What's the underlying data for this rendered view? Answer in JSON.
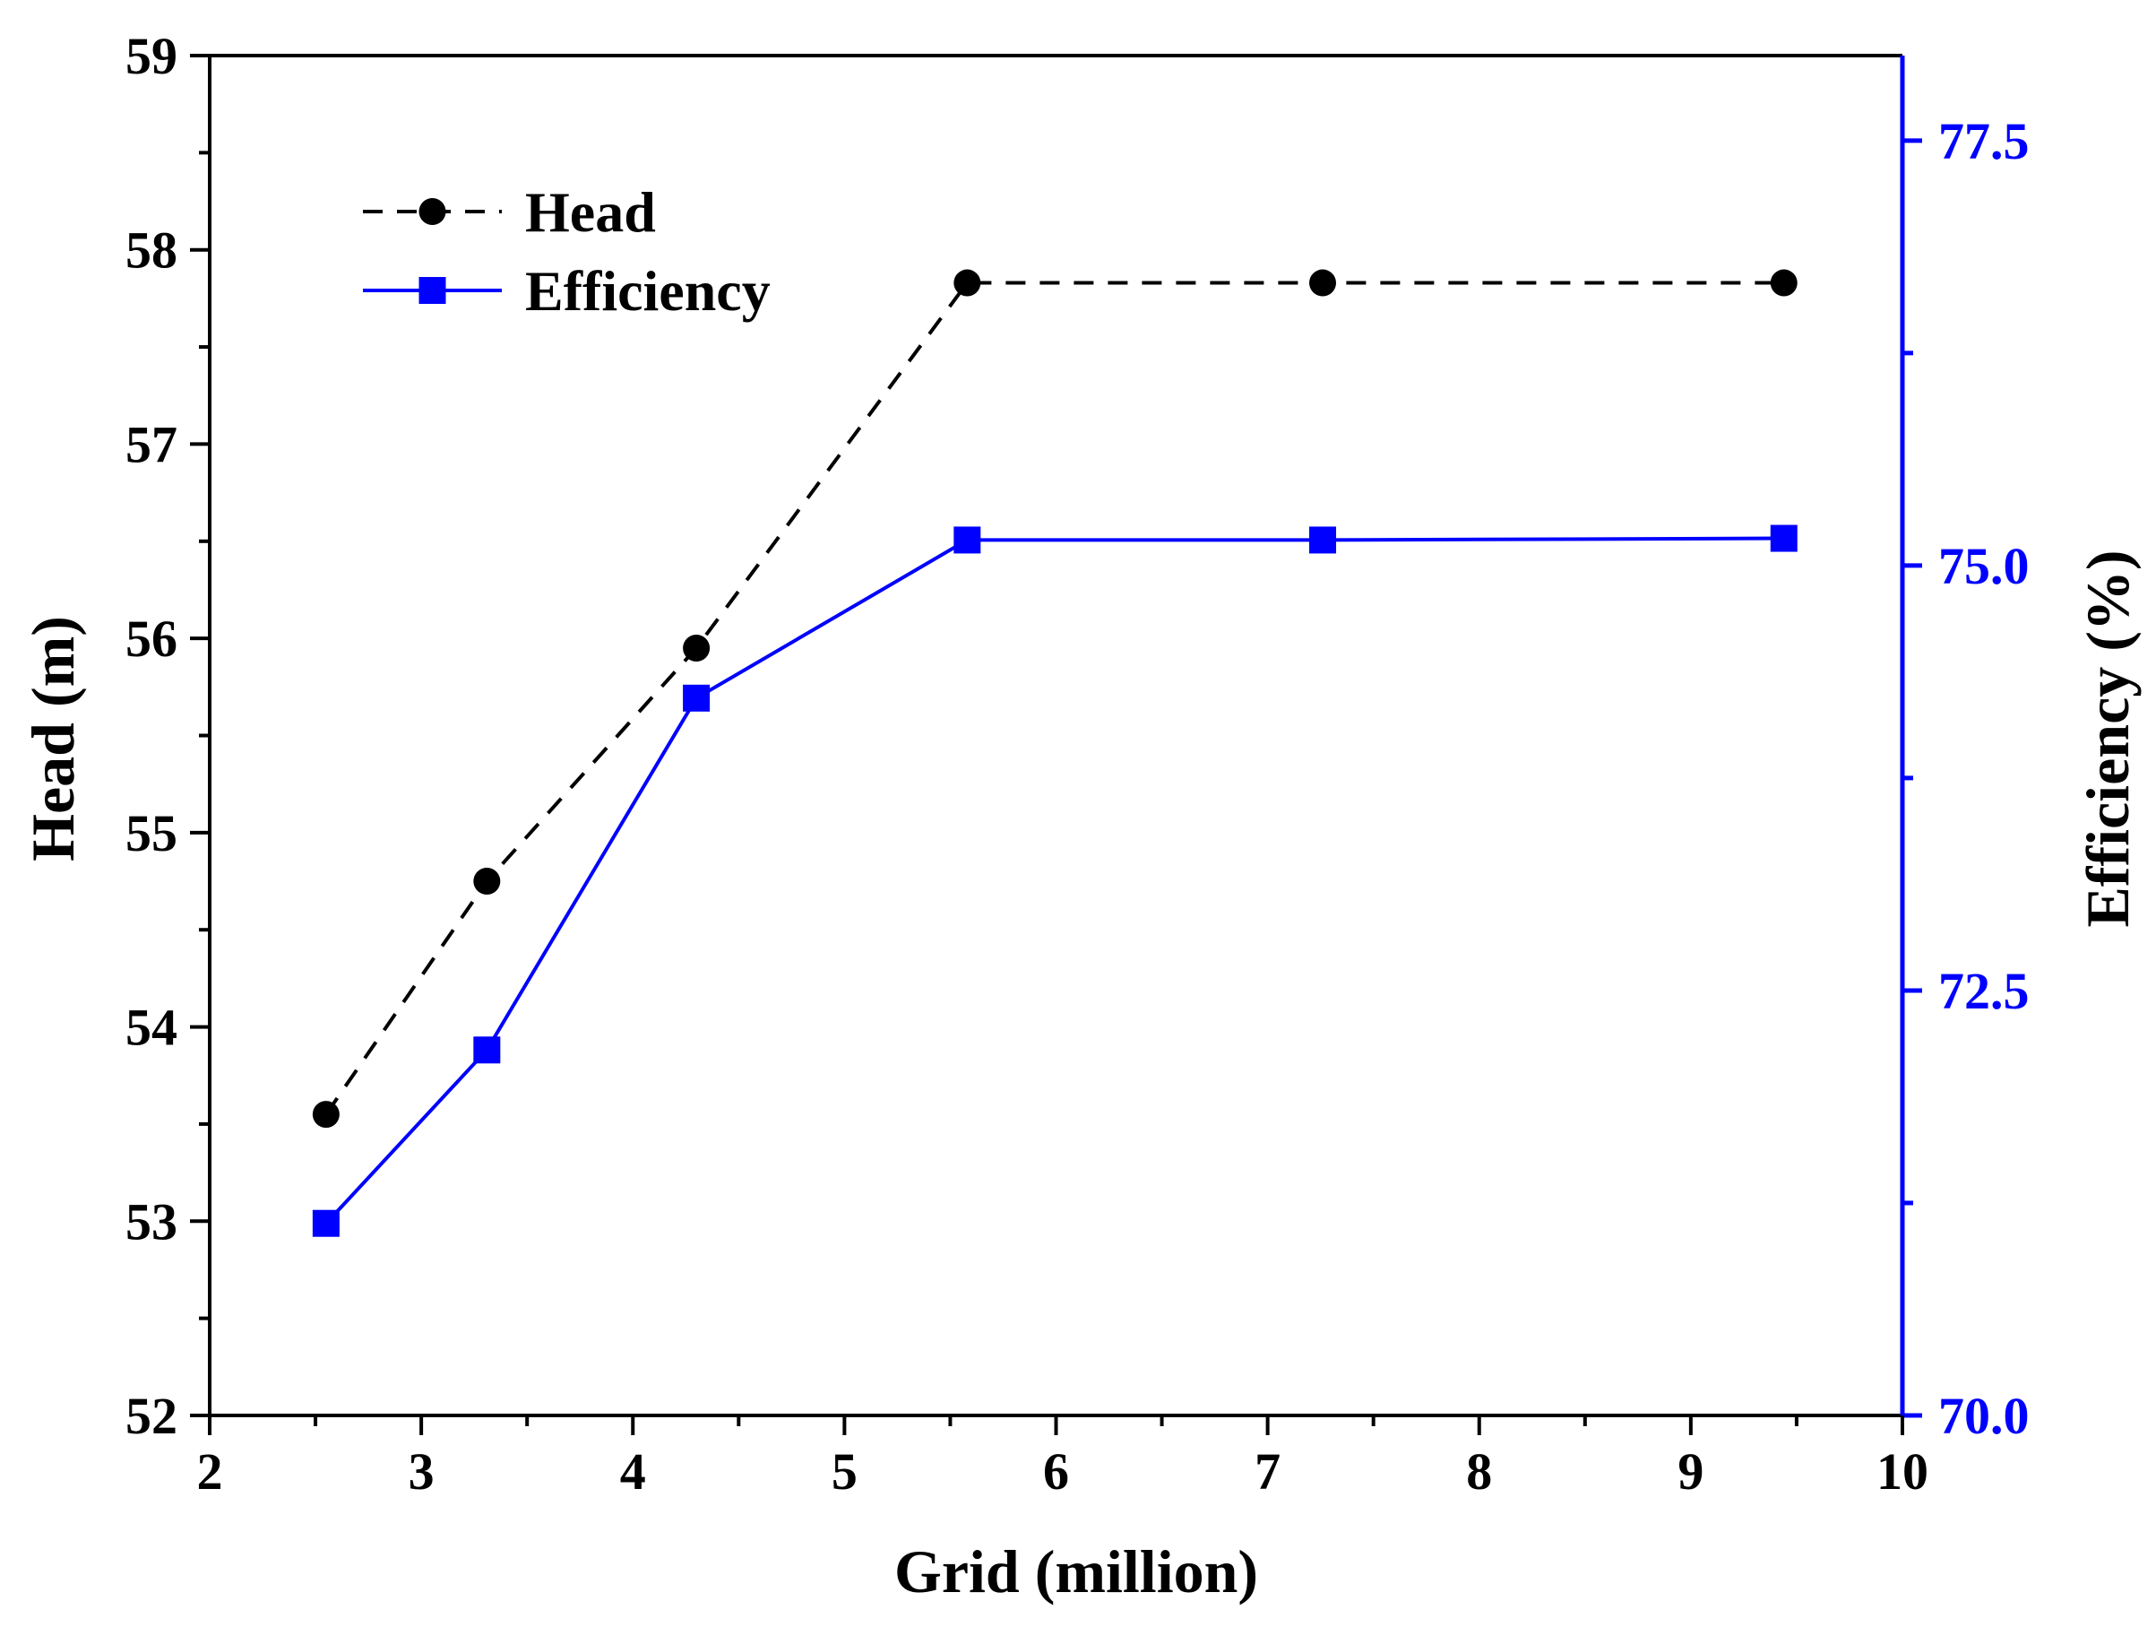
{
  "chart_data": {
    "type": "line",
    "title": "",
    "xlabel": "Grid (million)",
    "ylabel": "Head (m)",
    "y2label": "Efficiency (%)",
    "xlim": [
      2,
      10
    ],
    "ylim": [
      52,
      59
    ],
    "y2lim": [
      70.0,
      78.0
    ],
    "x_ticks": [
      2,
      3,
      4,
      5,
      6,
      7,
      8,
      9,
      10
    ],
    "y_ticks": [
      52,
      53,
      54,
      55,
      56,
      57,
      58,
      59
    ],
    "y2_ticks": [
      "70.0",
      "72.5",
      "75.0",
      "77.5"
    ],
    "grid": false,
    "legend_position": "top-left",
    "colors": {
      "head": "#000000",
      "efficiency": "#0000ff",
      "axis": "#000000",
      "right_axis": "#0000ff"
    },
    "series": [
      {
        "name": "Head",
        "axis": "left",
        "style": "dashed",
        "marker": "circle",
        "x": [
          2.55,
          3.31,
          4.3,
          5.58,
          7.26,
          9.44
        ],
        "values": [
          53.55,
          54.75,
          55.95,
          57.83,
          57.83,
          57.83
        ]
      },
      {
        "name": "Efficiency",
        "axis": "right",
        "style": "solid",
        "marker": "square",
        "x": [
          2.55,
          3.31,
          4.3,
          5.58,
          7.26,
          9.44
        ],
        "values": [
          71.13,
          72.15,
          74.22,
          75.15,
          75.15,
          75.16
        ]
      }
    ]
  }
}
